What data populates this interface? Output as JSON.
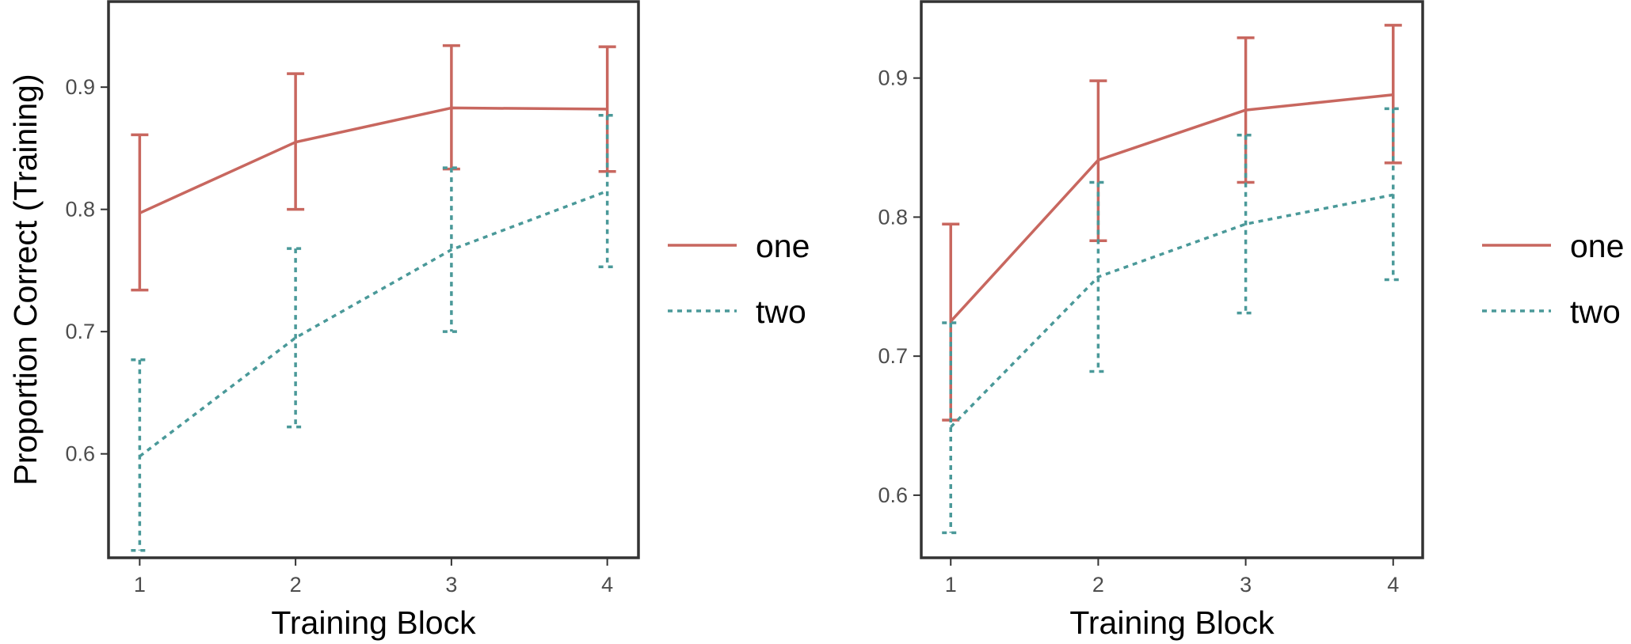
{
  "colors": {
    "one": "#C8675F",
    "two": "#4A9999",
    "frame": "#333333",
    "tick": "#4d4d4d"
  },
  "chart_data": [
    {
      "type": "line",
      "xlabel": "Training Block",
      "ylabel": "Proportion Correct (Training)",
      "x": [
        1,
        2,
        3,
        4
      ],
      "xticks": [
        "1",
        "2",
        "3",
        "4"
      ],
      "xlim": [
        0.8,
        4.2
      ],
      "ylim": [
        0.515,
        0.97
      ],
      "yticks": [
        0.6,
        0.7,
        0.8,
        0.9
      ],
      "ytick_labels": [
        "0.6",
        "0.7",
        "0.8",
        "0.9"
      ],
      "grid": false,
      "legend_position": "right",
      "series": [
        {
          "name": "one",
          "linestyle": "solid",
          "values": [
            0.797,
            0.855,
            0.883,
            0.882
          ],
          "lower": [
            0.734,
            0.8,
            0.833,
            0.831
          ],
          "upper": [
            0.861,
            0.911,
            0.934,
            0.933
          ]
        },
        {
          "name": "two",
          "linestyle": "dashed",
          "values": [
            0.598,
            0.695,
            0.767,
            0.815
          ],
          "lower": [
            0.521,
            0.622,
            0.7,
            0.753
          ],
          "upper": [
            0.677,
            0.768,
            0.834,
            0.877
          ]
        }
      ]
    },
    {
      "type": "line",
      "xlabel": "Training Block",
      "ylabel": "",
      "x": [
        1,
        2,
        3,
        4
      ],
      "xticks": [
        "1",
        "2",
        "3",
        "4"
      ],
      "xlim": [
        0.8,
        4.2
      ],
      "ylim": [
        0.555,
        0.955
      ],
      "yticks": [
        0.6,
        0.7,
        0.8,
        0.9
      ],
      "ytick_labels": [
        "0.6",
        "0.7",
        "0.8",
        "0.9"
      ],
      "grid": false,
      "legend_position": "right",
      "series": [
        {
          "name": "one",
          "linestyle": "solid",
          "values": [
            0.725,
            0.841,
            0.877,
            0.888
          ],
          "lower": [
            0.654,
            0.783,
            0.825,
            0.839
          ],
          "upper": [
            0.795,
            0.898,
            0.929,
            0.938
          ]
        },
        {
          "name": "two",
          "linestyle": "dashed",
          "values": [
            0.649,
            0.757,
            0.795,
            0.816
          ],
          "lower": [
            0.573,
            0.689,
            0.731,
            0.755
          ],
          "upper": [
            0.724,
            0.825,
            0.859,
            0.878
          ]
        }
      ]
    }
  ]
}
